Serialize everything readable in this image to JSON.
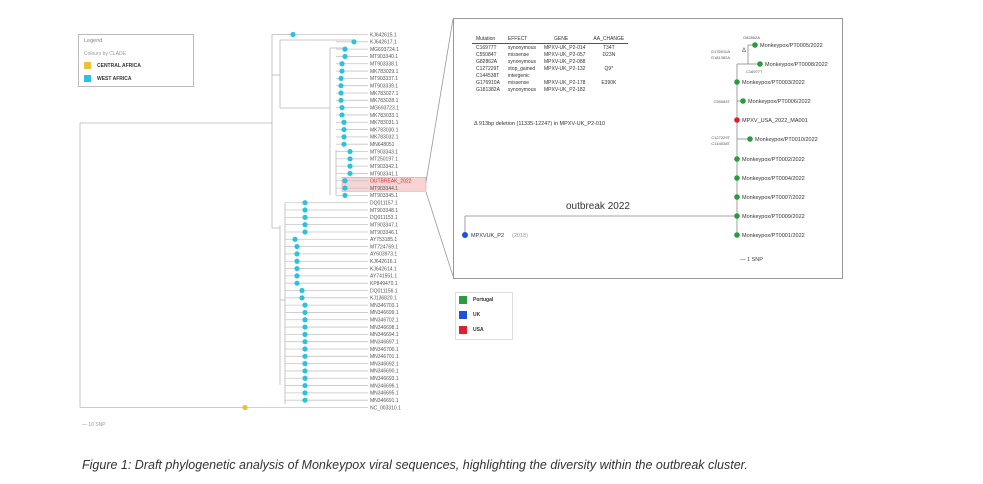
{
  "legend": {
    "title": "Legend",
    "subtitle": "Colours by CLADE",
    "items": [
      {
        "label": "CENTRAL AFRICA",
        "color": "#e8c23a"
      },
      {
        "label": "WEST AFRICA",
        "color": "#29c2e0"
      }
    ]
  },
  "tree": {
    "scale_label": "— 10 SNP",
    "highlight_color": "#f6d4d4",
    "tip_labels": [
      "KJ642615.1",
      "KJ642617.1",
      "MG693724.1",
      "MT903340.1",
      "MT903338.1",
      "MK783029.1",
      "MT903337.1",
      "MT903339.1",
      "MK783027.1",
      "MK783028.1",
      "MG693723.1",
      "MK783033.1",
      "MK783031.1",
      "MK783030.1",
      "MK783032.1",
      "MN648051",
      "MT903343.1",
      "MT250197.1",
      "MT903342.1",
      "MT903341.1",
      "OUTBREAK_2022",
      "MT903344.1",
      "MT903345.1",
      "DQ011157.1",
      "MT903348.1",
      "DQ011153.1",
      "MT903347.1",
      "MT903346.1",
      "AY753185.1",
      "MT724769.1",
      "AY603973.1",
      "KJ642616.1",
      "KJ642614.1",
      "AY741551.1",
      "KP849470.1",
      "DQ011156.1",
      "KJ136820.1",
      "MN346703.1",
      "MN346699.1",
      "MN346702.1",
      "MN346698.1",
      "MN346694.1",
      "MN346697.1",
      "MN346700.1",
      "MN346701.1",
      "MN346692.1",
      "MN346690.1",
      "MN346693.1",
      "MN346696.1",
      "MN346695.1",
      "MN346691.1",
      "NC_003310.1"
    ]
  },
  "mutation_table": {
    "headers": [
      "Mutation",
      "EFFECT",
      "GENE",
      "AA_CHANGE"
    ],
    "rows": [
      [
        "C16977T",
        "synonymous",
        "MPXV-UK_P2-014",
        "T34T"
      ],
      [
        "C55084T",
        "missense",
        "MPXV-UK_P2-057",
        "D23N"
      ],
      [
        "G82862A",
        "synonymous",
        "MPXV-UK_P2-088",
        ""
      ],
      [
        "C127229T",
        "stop_gained",
        "MPXV-UK_P2-132",
        "Q9*"
      ],
      [
        "C144538T",
        "intergenic",
        "",
        ""
      ],
      [
        "G176910A",
        "missense",
        "MPXV-UK_P2-178",
        "E390K"
      ],
      [
        "G181382A",
        "synonymous",
        "MPXV-UK_P2-182",
        ""
      ]
    ],
    "deletion_note": "Δ 913bp deletion (11335-12247) in MPXV-UK_P2-010"
  },
  "outbreak_tree": {
    "title": "outbreak 2022",
    "root_label": "MPXVUK_P2",
    "root_year": "(2018)",
    "scale_label": "— 1 SNP",
    "tips": [
      {
        "label": "Monkeypox/PT0005/2022",
        "country": "Portugal"
      },
      {
        "label": "Monkeypox/PT0008/2022",
        "country": "Portugal"
      },
      {
        "label": "Monkeypox/PT0003/2022",
        "country": "Portugal"
      },
      {
        "label": "Monkeypox/PT0006/2022",
        "country": "Portugal"
      },
      {
        "label": "MPXV_USA_2022_MA001",
        "country": "USA"
      },
      {
        "label": "Monkeypox/PT0010/2022",
        "country": "Portugal"
      },
      {
        "label": "Monkeypox/PT0002/2022",
        "country": "Portugal"
      },
      {
        "label": "Monkeypox/PT0004/2022",
        "country": "Portugal"
      },
      {
        "label": "Monkeypox/PT0007/2022",
        "country": "Portugal"
      },
      {
        "label": "Monkeypox/PT0009/2022",
        "country": "Portugal"
      },
      {
        "label": "Monkeypox/PT0001/2022",
        "country": "Portugal"
      }
    ],
    "branch_annotations": {
      "delta": "Δ",
      "g82862a": "G82862A",
      "g176910a": "G176910A",
      "g181382a": "G181382A",
      "c16977t": "C16977T",
      "c55084t": "C55084T",
      "c127229t": "C127229T",
      "c144538t": "C144538T"
    }
  },
  "country_legend": [
    {
      "label": "Portugal",
      "color": "#2e9a3e"
    },
    {
      "label": "UK",
      "color": "#1d4fe0"
    },
    {
      "label": "USA",
      "color": "#e0202c"
    }
  ],
  "caption": "Figure 1: Draft phylogenetic analysis of Monkeypox viral sequences, highlighting the diversity within the outbreak cluster."
}
